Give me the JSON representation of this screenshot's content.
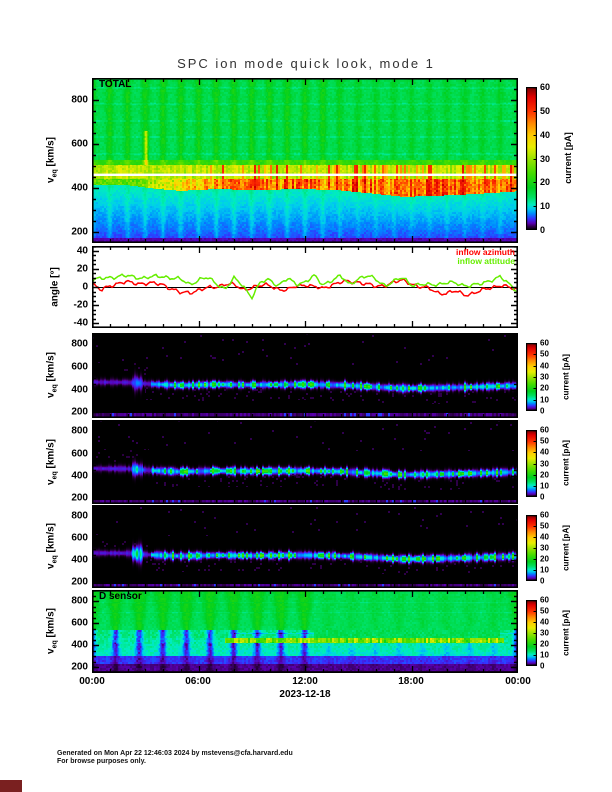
{
  "header": {
    "title": "SPC ion mode quick look, mode 1"
  },
  "footer": {
    "line1": "Generated on Mon Apr 22 12:46:03 2024 by mstevens@cfa.harvard.edu",
    "line2": "For browse purposes only."
  },
  "xaxis": {
    "tick_labels": [
      "00:00",
      "06:00",
      "12:00",
      "18:00",
      "00:00"
    ],
    "date_label": "2023-12-18",
    "range_hours": [
      0,
      24
    ],
    "major_every_hours": 6,
    "minor_every_hours": 1
  },
  "axis_labels": {
    "veq": {
      "main": "v",
      "sub": "eq",
      "unit": "[km/s]"
    }
  },
  "colors": {
    "background": "#ffffff",
    "frame": "#000000",
    "white_line": "#ffffff",
    "title_text": "#333333",
    "footer_text": "#111111",
    "corner_mark": "#7a2020",
    "azimuth_line": "#ff0000",
    "attitude_line": "#66ee00",
    "colormap_stops": [
      [
        0,
        "#000000"
      ],
      [
        1.5,
        "#2a0040"
      ],
      [
        3,
        "#5a00b0"
      ],
      [
        5,
        "#3333ff"
      ],
      [
        7,
        "#0088ff"
      ],
      [
        9,
        "#00ccee"
      ],
      [
        11,
        "#00eebb"
      ],
      [
        14,
        "#00e060"
      ],
      [
        18,
        "#00d020"
      ],
      [
        24,
        "#44dd00"
      ],
      [
        30,
        "#99e300"
      ],
      [
        35,
        "#e8ee00"
      ],
      [
        40,
        "#ffcc00"
      ],
      [
        45,
        "#ff8800"
      ],
      [
        50,
        "#ff3300"
      ],
      [
        56,
        "#e00000"
      ],
      [
        60,
        "#7a0000"
      ]
    ]
  },
  "chart_data": [
    {
      "id": "total",
      "type": "heatmap",
      "title_inset": "TOTAL",
      "ylabel": "v_eq [km/s]",
      "yticks": [
        200,
        400,
        600,
        800
      ],
      "yrange_kms": [
        150,
        900
      ],
      "colorbar": {
        "label": "current [pA]",
        "ticks": [
          0,
          10,
          20,
          30,
          40,
          50,
          60
        ],
        "range_pA": [
          0,
          60
        ]
      },
      "features": {
        "background_current_pA": 16,
        "yellow_band_kms": [
          440,
          505
        ],
        "white_line_kms": 460,
        "red_band": {
          "t_hours": [
            0,
            2,
            3.5,
            5,
            7,
            9,
            12,
            14,
            16,
            17.5,
            19,
            21,
            22.5,
            24
          ],
          "v_kms": [
            470,
            468,
            452,
            442,
            450,
            446,
            450,
            444,
            428,
            415,
            418,
            425,
            432,
            440
          ],
          "peak_current_pA": 55
        },
        "cold_below_kms": 390,
        "stripe_period_hours": 1,
        "spike_hour": 3.05
      }
    },
    {
      "id": "inflow_angles",
      "type": "line",
      "ylabel": "angle [°]",
      "yticks": [
        -40,
        -20,
        0,
        20,
        40
      ],
      "yrange_deg": [
        -45,
        45
      ],
      "zero_line_deg": 0,
      "series": [
        {
          "name": "inflow azimuth",
          "color": "#ff0000",
          "t_hours": [
            0,
            0.5,
            1,
            1.5,
            2,
            3,
            4,
            4.5,
            5,
            5.5,
            6,
            7,
            7.5,
            8,
            8.5,
            9,
            10,
            10.5,
            11,
            11.5,
            12,
            12.5,
            13,
            13.5,
            14,
            15,
            15.5,
            16,
            17,
            17.5,
            18,
            18.5,
            19,
            19.5,
            20,
            20.5,
            21,
            21.5,
            22,
            22.5,
            23,
            23.5,
            24
          ],
          "values_deg": [
            3,
            -4,
            2,
            4,
            5,
            4,
            3,
            -2,
            -7,
            -6,
            -3,
            0,
            4,
            2,
            -3,
            0,
            2,
            -2,
            -4,
            1,
            3,
            0,
            -2,
            3,
            5,
            6,
            3,
            0,
            5,
            7,
            4,
            0,
            -2,
            -6,
            -7,
            -5,
            -8,
            -7,
            -4,
            0,
            2,
            -1,
            -3
          ]
        },
        {
          "name": "inflow attitude",
          "color": "#66ee00",
          "t_hours": [
            0,
            0.5,
            1,
            2,
            3,
            4,
            5,
            5.5,
            6,
            6.5,
            7,
            7.5,
            8,
            8.5,
            9,
            9.5,
            10,
            10.5,
            11,
            11.5,
            12,
            12.5,
            13,
            13.5,
            14,
            14.5,
            15,
            15.5,
            16,
            16.5,
            17,
            17.5,
            18,
            19,
            20,
            21,
            22,
            22.5,
            23,
            23.5,
            24
          ],
          "values_deg": [
            7,
            9,
            11,
            12,
            10,
            12,
            8,
            3,
            8,
            10,
            4,
            -2,
            9,
            2,
            -11,
            5,
            8,
            2,
            9,
            3,
            6,
            12,
            2,
            8,
            12,
            2,
            10,
            12,
            8,
            2,
            6,
            10,
            3,
            2,
            5,
            2,
            3,
            8,
            12,
            2,
            -5
          ]
        }
      ]
    },
    {
      "id": "sub_spectrogram_1",
      "type": "heatmap",
      "ylabel": "v_eq [km/s]",
      "yticks": [
        200,
        400,
        600,
        800
      ],
      "yrange_kms": [
        150,
        900
      ],
      "colorbar": {
        "label": "current [pA]",
        "ticks": [
          0,
          10,
          20,
          30,
          40,
          50,
          60
        ],
        "range_pA": [
          0,
          60
        ]
      },
      "features": {
        "early_flat_band_kms": [
          455,
          490
        ],
        "bright_blob_hour": 2.5,
        "blob_strength": 4,
        "green_fraction": 0.3,
        "band_current_pA": [
          5,
          25
        ]
      }
    },
    {
      "id": "sub_spectrogram_2",
      "type": "heatmap",
      "ylabel": "v_eq [km/s]",
      "yticks": [
        200,
        400,
        600,
        800
      ],
      "yrange_kms": [
        150,
        900
      ],
      "colorbar": {
        "label": "current [pA]",
        "ticks": [
          0,
          10,
          20,
          30,
          40,
          50,
          60
        ],
        "range_pA": [
          0,
          60
        ]
      },
      "features": {
        "early_flat_band_kms": [
          455,
          490
        ],
        "bright_blob_hour": 2.5,
        "blob_strength": 7,
        "green_fraction": 0.34,
        "band_current_pA": [
          5,
          25
        ]
      }
    },
    {
      "id": "sub_spectrogram_3",
      "type": "heatmap",
      "ylabel": "v_eq [km/s]",
      "yticks": [
        200,
        400,
        600,
        800
      ],
      "yrange_kms": [
        150,
        900
      ],
      "colorbar": {
        "label": "current [pA]",
        "ticks": [
          0,
          10,
          20,
          30,
          40,
          50,
          60
        ],
        "range_pA": [
          0,
          60
        ]
      },
      "features": {
        "early_flat_band_kms": [
          455,
          490
        ],
        "bright_blob_hour": 2.5,
        "blob_strength": 10,
        "green_fraction": 0.3,
        "band_current_pA": [
          5,
          25
        ]
      }
    },
    {
      "id": "d_sensor",
      "type": "heatmap",
      "title_inset": "D sensor",
      "ylabel": "v_eq [km/s]",
      "yticks": [
        200,
        400,
        600,
        800
      ],
      "yrange_kms": [
        150,
        900
      ],
      "colorbar": {
        "label": "current [pA]",
        "ticks": [
          0,
          10,
          20,
          30,
          40,
          50,
          60
        ],
        "range_pA": [
          0,
          60
        ]
      },
      "features": {
        "wedge_period_hours": 1.33,
        "yellow_band_kms": [
          425,
          470
        ],
        "yellow_band_hours": [
          7.5,
          23.2
        ],
        "quiet_hours": [
          12.5,
          23
        ],
        "background_current_pA": 16
      }
    }
  ]
}
